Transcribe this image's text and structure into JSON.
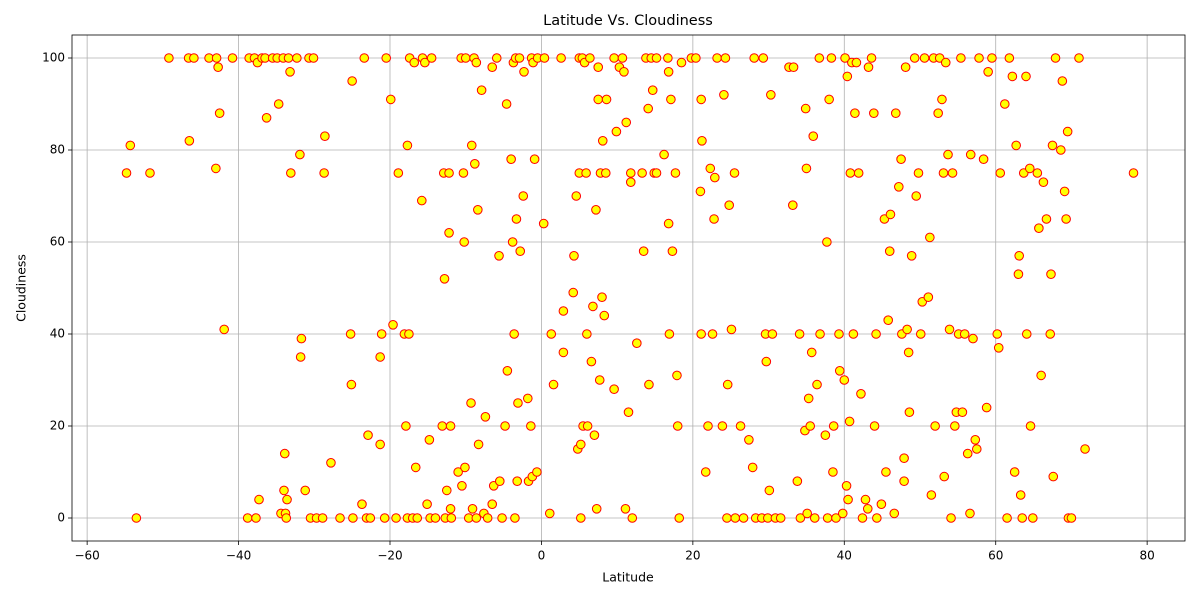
{
  "chart_data": {
    "type": "scatter",
    "title": "Latitude Vs. Cloudiness",
    "x_label": "Latitude",
    "y_label": "Cloudiness",
    "xlim": [
      -62,
      85
    ],
    "ylim": [
      -5,
      105
    ],
    "xticks": [
      {
        "value": -60,
        "label": "−60"
      },
      {
        "value": -40,
        "label": "−40"
      },
      {
        "value": -20,
        "label": "−20"
      },
      0,
      20,
      40,
      60,
      80
    ],
    "yticks": [
      0,
      20,
      40,
      60,
      80,
      100
    ],
    "grid": true,
    "color": "yellow",
    "edge_color": "red",
    "x": [
      -54.8,
      -54.3,
      -53.5,
      -51.7,
      -49.2,
      -46.6,
      -46.5,
      -45.9,
      -43.9,
      -43,
      -42.9,
      -42.7,
      -42.5,
      -41.9,
      -40.8,
      -38.8,
      -38.6,
      -37.9,
      -37.7,
      -37.5,
      -37.3,
      -36.9,
      -36.5,
      -36.3,
      -35.5,
      -34.9,
      -34.7,
      -34.4,
      -34.1,
      -34.0,
      -33.9,
      -33.8,
      -33.7,
      -33.6,
      -33.4,
      -33.2,
      -33.1,
      -32.3,
      -31.9,
      -31.8,
      -31.7,
      -31.2,
      -30.7,
      -30.5,
      -30.1,
      -29.7,
      -28.9,
      -28.6,
      -28.7,
      -27.8,
      -26.6,
      -25.2,
      -25.1,
      -25.0,
      -24.9,
      -23.7,
      -23.4,
      -23.1,
      -22.9,
      -22.6,
      -21.3,
      -21.3,
      -21.1,
      -20.7,
      -20.5,
      -19.9,
      -19.6,
      -19.2,
      -18.9,
      -18.1,
      -17.9,
      -17.7,
      -17.7,
      -17.5,
      -17.4,
      -17.0,
      -16.8,
      -16.6,
      -16.4,
      -15.8,
      -15.7,
      -15.4,
      -15.1,
      -14.8,
      -14.7,
      -14.5,
      -14.0,
      -13.1,
      -12.9,
      -12.8,
      -12.7,
      -12.5,
      -12.2,
      -12.2,
      -12.0,
      -12.0,
      -11.9,
      -11.0,
      -10.6,
      -10.5,
      -10.3,
      -10.2,
      -10.1,
      -10.0,
      -9.6,
      -9.3,
      -9.2,
      -9.1,
      -8.9,
      -8.8,
      -8.6,
      -8.6,
      -8.4,
      -8.3,
      -7.9,
      -7.6,
      -7.4,
      -7.1,
      -6.5,
      -6.5,
      -6.3,
      -5.9,
      -5.6,
      -5.5,
      -5.2,
      -4.8,
      -4.6,
      -4.5,
      -4.0,
      -3.8,
      -3.7,
      -3.6,
      -3.5,
      -3.4,
      -3.3,
      -3.2,
      -3.1,
      -2.9,
      -2.8,
      -2.4,
      -2.3,
      -1.8,
      -1.7,
      -1.4,
      -1.3,
      -1.2,
      -1.1,
      -0.9,
      -0.6,
      -0.5,
      0.3,
      0.4,
      1.1,
      1.3,
      1.6,
      2.6,
      2.9,
      2.9,
      4.2,
      4.3,
      4.6,
      4.8,
      5.0,
      5.0,
      5.2,
      5.2,
      5.4,
      5.5,
      5.7,
      5.9,
      6.0,
      6.1,
      6.4,
      6.6,
      6.8,
      7.0,
      7.2,
      7.3,
      7.5,
      7.5,
      7.7,
      7.8,
      8.0,
      8.1,
      8.3,
      8.5,
      8.6,
      9.6,
      9.6,
      9.9,
      10.3,
      10.7,
      10.9,
      11.1,
      11.2,
      11.5,
      11.8,
      11.8,
      12.0,
      12.6,
      13.3,
      13.5,
      13.8,
      14.1,
      14.2,
      14.5,
      14.7,
      14.9,
      15.2,
      15.2,
      16.2,
      16.7,
      16.8,
      16.8,
      16.9,
      17.1,
      17.3,
      17.7,
      17.9,
      18.0,
      18.2,
      18.5,
      19.8,
      20.4,
      21.0,
      21.1,
      21.1,
      21.2,
      21.7,
      22.0,
      22.3,
      22.6,
      22.8,
      22.9,
      23.2,
      23.9,
      24.1,
      24.3,
      24.5,
      24.6,
      24.8,
      25.1,
      25.5,
      25.6,
      26.3,
      26.7,
      27.4,
      27.9,
      28.1,
      28.3,
      29.1,
      29.3,
      29.6,
      29.7,
      29.9,
      30.1,
      30.3,
      30.5,
      30.9,
      31.6,
      32.7,
      33.2,
      33.3,
      33.8,
      34.1,
      34.2,
      34.8,
      34.9,
      35.0,
      35.1,
      35.3,
      35.5,
      35.7,
      35.9,
      36.1,
      36.4,
      36.7,
      36.8,
      37.5,
      37.7,
      37.8,
      38.0,
      38.3,
      38.5,
      38.6,
      38.9,
      39.3,
      39.4,
      39.8,
      40.0,
      40.1,
      40.3,
      40.4,
      40.5,
      40.7,
      40.8,
      41.0,
      41.2,
      41.4,
      41.6,
      41.9,
      42.2,
      42.4,
      42.8,
      43.1,
      43.2,
      43.6,
      43.9,
      44.0,
      44.2,
      44.3,
      44.9,
      45.3,
      45.5,
      45.8,
      46.0,
      46.1,
      46.6,
      46.8,
      47.2,
      47.5,
      47.6,
      47.9,
      47.9,
      48.1,
      48.3,
      48.5,
      48.6,
      48.9,
      49.3,
      49.5,
      49.8,
      50.1,
      50.3,
      50.6,
      51.1,
      51.3,
      51.5,
      51.8,
      52.0,
      52.4,
      52.6,
      52.9,
      53.1,
      53.2,
      53.4,
      53.7,
      53.9,
      54.1,
      54.3,
      54.6,
      54.8,
      55.1,
      55.4,
      55.6,
      55.9,
      56.3,
      56.6,
      56.7,
      57.0,
      57.3,
      57.5,
      57.8,
      58.4,
      58.8,
      59.0,
      59.5,
      60.2,
      60.4,
      60.6,
      61.2,
      61.5,
      61.8,
      62.2,
      62.5,
      62.7,
      63.0,
      63.1,
      63.3,
      63.5,
      63.7,
      64.0,
      64.1,
      64.5,
      64.6,
      64.9,
      65.5,
      65.7,
      66.0,
      66.3,
      66.7,
      67.2,
      67.3,
      67.5,
      67.6,
      67.9,
      68.6,
      68.8,
      69.1,
      69.3,
      69.5,
      69.6,
      70.0,
      71.0,
      71.8,
      78.2
    ],
    "values": [
      75,
      81,
      0,
      75,
      100,
      100,
      82,
      100,
      100,
      76,
      100,
      98,
      88,
      41,
      100,
      0,
      100,
      100,
      0,
      99,
      4,
      100,
      100,
      87,
      100,
      100,
      90,
      1,
      100,
      6,
      14,
      1,
      0,
      4,
      100,
      97,
      75,
      100,
      79,
      35,
      39,
      6,
      100,
      0,
      100,
      0,
      0,
      83,
      75,
      12,
      0,
      40,
      29,
      95,
      0,
      3,
      100,
      0,
      18,
      0,
      16,
      35,
      40,
      0,
      100,
      91,
      42,
      0,
      75,
      40,
      20,
      81,
      0,
      40,
      100,
      0,
      99,
      11,
      0,
      69,
      100,
      99,
      3,
      17,
      0,
      100,
      0,
      20,
      75,
      52,
      0,
      6,
      75,
      62,
      20,
      2,
      0,
      10,
      100,
      7,
      75,
      60,
      11,
      100,
      0,
      25,
      81,
      2,
      100,
      77,
      0,
      99,
      67,
      16,
      93,
      1,
      22,
      0,
      98,
      3,
      7,
      100,
      57,
      8,
      0,
      20,
      90,
      32,
      78,
      60,
      99,
      40,
      0,
      100,
      65,
      8,
      25,
      100,
      58,
      70,
      97,
      26,
      8,
      20,
      100,
      9,
      99,
      78,
      10,
      100,
      64,
      100,
      1,
      40,
      29,
      100,
      45,
      36,
      49,
      57,
      70,
      15,
      75,
      100,
      16,
      0,
      100,
      20,
      99,
      75,
      40,
      20,
      100,
      34,
      46,
      18,
      67,
      2,
      98,
      91,
      30,
      75,
      48,
      82,
      44,
      75,
      91,
      28,
      100,
      84,
      98,
      100,
      97,
      2,
      86,
      23,
      75,
      73,
      0,
      38,
      75,
      58,
      100,
      89,
      29,
      100,
      93,
      75,
      75,
      100,
      79,
      100,
      97,
      64,
      40,
      91,
      58,
      75,
      31,
      20,
      0,
      99,
      100,
      100,
      71,
      91,
      40,
      82,
      10,
      20,
      76,
      40,
      65,
      74,
      100,
      20,
      92,
      100,
      0,
      29,
      68,
      41,
      75,
      0,
      20,
      0,
      17,
      11,
      100,
      0,
      0,
      100,
      40,
      34,
      0,
      6,
      92,
      40,
      0,
      0,
      98,
      68,
      98,
      8,
      40,
      0,
      19,
      89,
      76,
      1,
      26,
      20,
      36,
      83,
      0,
      29,
      100,
      40,
      18,
      60,
      0,
      91,
      100,
      10,
      20,
      0,
      40,
      32,
      1,
      30,
      100,
      7,
      96,
      4,
      21,
      75,
      99,
      40,
      88,
      99,
      75,
      27,
      0,
      4,
      2,
      98,
      100,
      88,
      20,
      40,
      0,
      3,
      65,
      10,
      43,
      58,
      66,
      1,
      88,
      72,
      78,
      40,
      13,
      8,
      98,
      41,
      36,
      23,
      57,
      100,
      70,
      75,
      40,
      47,
      100,
      48,
      61,
      5,
      100,
      20,
      88,
      100,
      91,
      75,
      9,
      99,
      79,
      41,
      0,
      75,
      20,
      23,
      40,
      100,
      23,
      40,
      14,
      1,
      79,
      39,
      17,
      15,
      100,
      78,
      24,
      97,
      100,
      40,
      37,
      75,
      90,
      0,
      100,
      96,
      10,
      81,
      53,
      57,
      5,
      0,
      75,
      96,
      40,
      76,
      20,
      0,
      75,
      63,
      31,
      73,
      65,
      40,
      53,
      81,
      9,
      100,
      80,
      95,
      71,
      65,
      84,
      0,
      0,
      100,
      15,
      75
    ]
  }
}
